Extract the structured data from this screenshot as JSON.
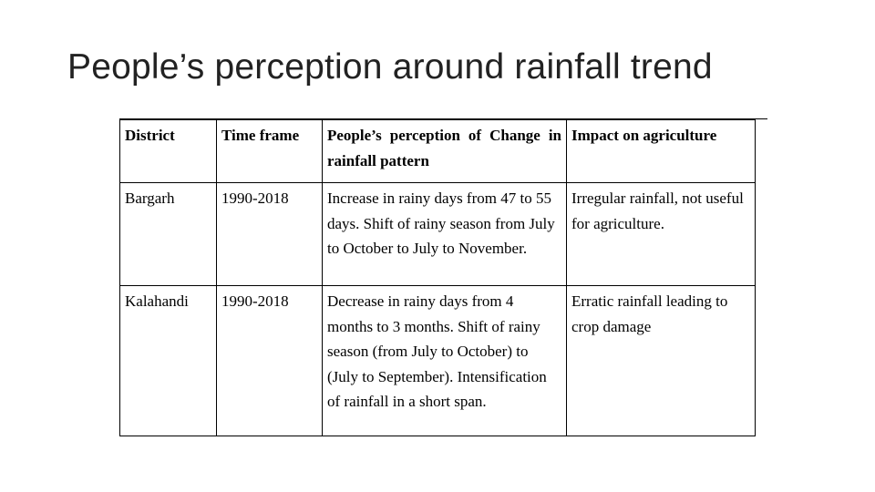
{
  "title": "People’s perception around rainfall trend",
  "table": {
    "header": [
      "District",
      "Time frame",
      "People’s perception of Change in rainfall pattern",
      "Impact on agriculture"
    ],
    "rows": [
      [
        "Bargarh",
        "1990-2018",
        "Increase in rainy days from 47 to 55 days. Shift of rainy season from July to October to July to November.",
        "Irregular rainfall, not useful for agriculture."
      ],
      [
        "Kalahandi",
        "1990-2018",
        "Decrease in rainy days from 4 months to 3 months.  Shift of rainy season (from July to October) to (July to September). Intensification of rainfall in a short span.",
        "Erratic rainfall leading to crop damage"
      ]
    ]
  }
}
